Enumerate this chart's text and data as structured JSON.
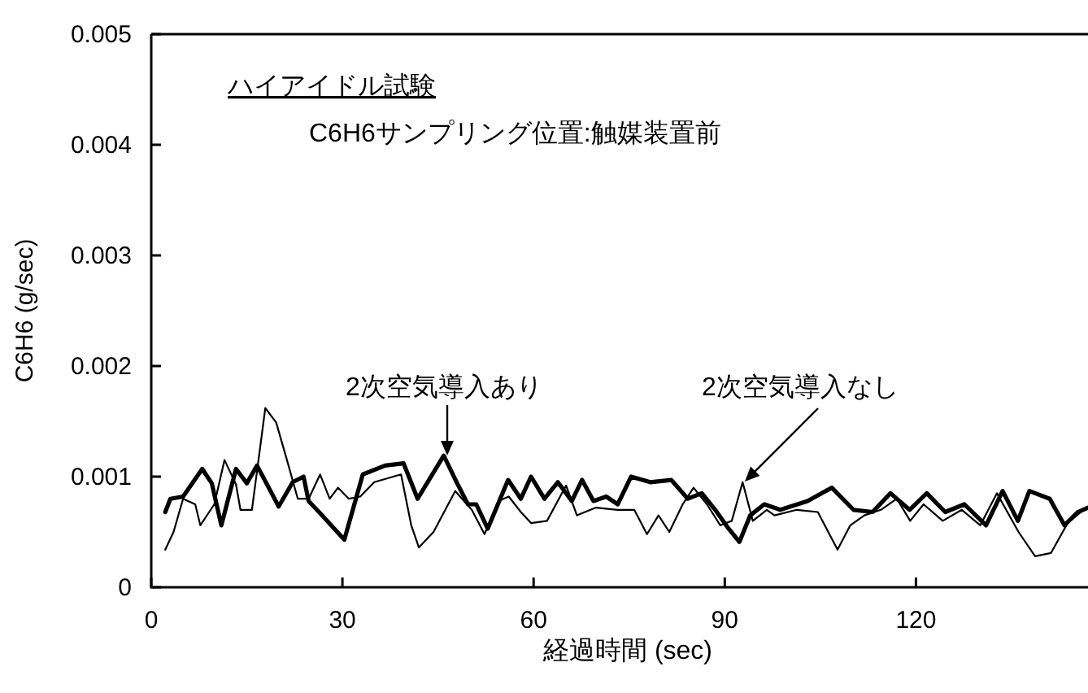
{
  "chart_data": {
    "type": "line",
    "title": "ハイアイドル試験",
    "subtitle": "C6H6サンプリング位置:触媒装置前",
    "xlabel": "経過時間 (sec)",
    "ylabel": "C6H6 (g/sec)",
    "xlim": [
      0,
      147
    ],
    "ylim": [
      0,
      0.005
    ],
    "xticks": [
      0,
      30,
      60,
      90,
      120
    ],
    "yticks": [
      0,
      0.001,
      0.002,
      0.003,
      0.004,
      0.005
    ],
    "grid": false,
    "annotations": [
      "2次空気導入あり",
      "2次空気導入なし"
    ],
    "series": [
      {
        "color": "#000000",
        "x": [
          2.2,
          3,
          5,
          8,
          9.5,
          11,
          13.3,
          15,
          16.6,
          20,
          22.2,
          23.9,
          24.7,
          26.8,
          30.3,
          33.2,
          36.7,
          39.6,
          41.8,
          45.9,
          48,
          49.7,
          51,
          52.8,
          56,
          58,
          59.6,
          61.7,
          63.8,
          66,
          67.6,
          69.4,
          71.4,
          73.2,
          75.3,
          78.3,
          81.6,
          84.2,
          86.4,
          88.5,
          90.6,
          92.3,
          94,
          96.2,
          98.7,
          103,
          106.8,
          110.2,
          113.2,
          116,
          119,
          121.7,
          124.6,
          127.6,
          131,
          133.6,
          136,
          137.8,
          141,
          143.3,
          145.4,
          147
        ],
        "values": [
          0.00068,
          0.0008,
          0.00082,
          0.00107,
          0.00094,
          0.00056,
          0.00107,
          0.00094,
          0.0011,
          0.00073,
          0.00095,
          0.001,
          0.00078,
          0.00065,
          0.00043,
          0.00102,
          0.0011,
          0.00112,
          0.0008,
          0.00119,
          0.00094,
          0.00075,
          0.00075,
          0.00053,
          0.00097,
          0.0008,
          0.001,
          0.0008,
          0.00095,
          0.00078,
          0.00097,
          0.00078,
          0.00082,
          0.00075,
          0.001,
          0.00095,
          0.00097,
          0.0008,
          0.00085,
          0.0007,
          0.00053,
          0.00041,
          0.00065,
          0.00075,
          0.0007,
          0.00078,
          0.0009,
          0.0007,
          0.00068,
          0.00085,
          0.0007,
          0.00085,
          0.00068,
          0.00075,
          0.00056,
          0.00087,
          0.0006,
          0.00087,
          0.0008,
          0.00056,
          0.00068,
          0.00072
        ]
      },
      {
        "color": "#000000",
        "x": [
          2.2,
          3.5,
          5,
          6.9,
          7.7,
          9.9,
          11.5,
          13.3,
          14,
          15.8,
          17.9,
          19.6,
          21.3,
          23,
          24.7,
          26.5,
          28,
          29.3,
          31,
          32.8,
          35,
          39.2,
          40.8,
          42,
          44.3,
          47.7,
          50.3,
          52.3,
          54.5,
          56.1,
          58,
          59.6,
          62.1,
          65.1,
          66.8,
          69.8,
          73.2,
          75.8,
          77.8,
          79.6,
          81.3,
          83.4,
          85.1,
          87.2,
          89.3,
          91.1,
          92.8,
          94.4,
          96.6,
          97.8,
          101.3,
          104.6,
          107.7,
          109.7,
          111.9,
          114.5,
          117,
          119.1,
          121.2,
          124.2,
          127.2,
          130.1,
          132.7,
          136.1,
          138.7,
          141.2,
          143.8,
          145.9
        ],
        "values": [
          0.00034,
          0.0005,
          0.0008,
          0.00075,
          0.00056,
          0.00075,
          0.00115,
          0.00093,
          0.0007,
          0.0007,
          0.00162,
          0.00149,
          0.00115,
          0.0008,
          0.0008,
          0.00102,
          0.0008,
          0.0009,
          0.0008,
          0.00082,
          0.00095,
          0.00102,
          0.00056,
          0.00036,
          0.0005,
          0.00087,
          0.0007,
          0.00048,
          0.00078,
          0.00082,
          0.00068,
          0.00058,
          0.0006,
          0.00092,
          0.00065,
          0.00072,
          0.0007,
          0.0007,
          0.00048,
          0.00065,
          0.0005,
          0.00075,
          0.0009,
          0.00075,
          0.00056,
          0.0006,
          0.00095,
          0.0006,
          0.0007,
          0.00065,
          0.0007,
          0.00068,
          0.00034,
          0.00056,
          0.00065,
          0.0007,
          0.0008,
          0.0006,
          0.00075,
          0.0006,
          0.0007,
          0.00056,
          0.00085,
          0.0005,
          0.00028,
          0.00031,
          0.00058,
          0.00068
        ]
      }
    ]
  }
}
